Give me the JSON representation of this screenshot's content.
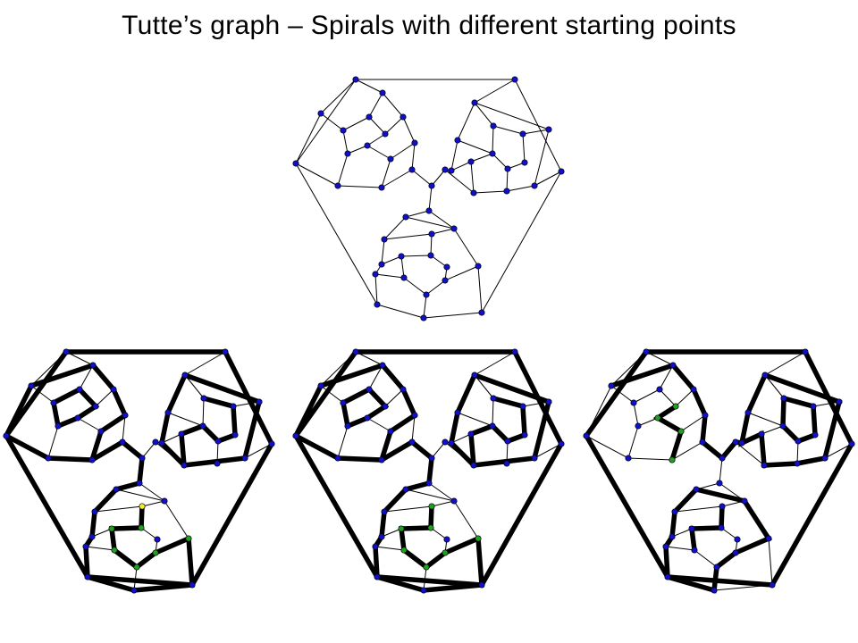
{
  "slide": {
    "title": "Tutte’s graph – Spirals with different starting points"
  },
  "graph": {
    "name": "Tutte’s graph",
    "vertex_count": 46,
    "edge_count": 69,
    "node_color": "#1010cc"
  },
  "diagrams": [
    {
      "id": "tutte-graph-plain",
      "highlights": []
    },
    {
      "id": "tutte-spiral-start-1",
      "highlights": [
        "#e8201c",
        "#1818e0",
        "#22e022"
      ],
      "start_vertex_color": "#f2ee30"
    },
    {
      "id": "tutte-spiral-start-2",
      "highlights": [
        "#e8201c",
        "#1818e0",
        "#22e022"
      ]
    },
    {
      "id": "tutte-spiral-start-3",
      "highlights": [
        "#e8201c",
        "#1818e0",
        "#22e022"
      ]
    }
  ]
}
